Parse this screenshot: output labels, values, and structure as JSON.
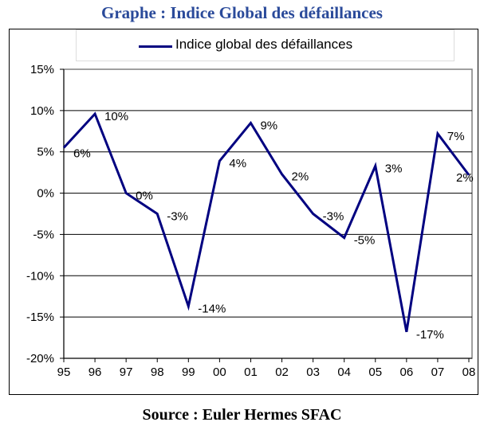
{
  "title": "Graphe : Indice Global des défaillances",
  "source": "Source : Euler Hermes SFAC",
  "chart_data": {
    "type": "line",
    "title": "Graphe : Indice Global des défaillances",
    "categories": [
      "95",
      "96",
      "97",
      "98",
      "99",
      "00",
      "01",
      "02",
      "03",
      "04",
      "05",
      "06",
      "07",
      "08"
    ],
    "series": [
      {
        "name": "Indice global des défaillances",
        "color": "#000080",
        "values": [
          5.5,
          9.6,
          0.0,
          -2.5,
          -13.7,
          3.9,
          8.5,
          2.3,
          -2.5,
          -5.4,
          3.3,
          -16.8,
          7.2,
          2.2
        ],
        "labels": [
          "6%",
          "10%",
          "0%",
          "-3%",
          "-14%",
          "4%",
          "9%",
          "2%",
          "-3%",
          "-5%",
          "3%",
          "-17%",
          "7%",
          "2%"
        ]
      }
    ],
    "yticks": [
      15,
      10,
      5,
      0,
      -5,
      -10,
      -15,
      -20
    ],
    "ytick_labels": [
      "15%",
      "10%",
      "5%",
      "0%",
      "-5%",
      "-10%",
      "-15%",
      "-20%"
    ],
    "ylim": [
      -20,
      15
    ],
    "grid": true,
    "legend": "top"
  }
}
